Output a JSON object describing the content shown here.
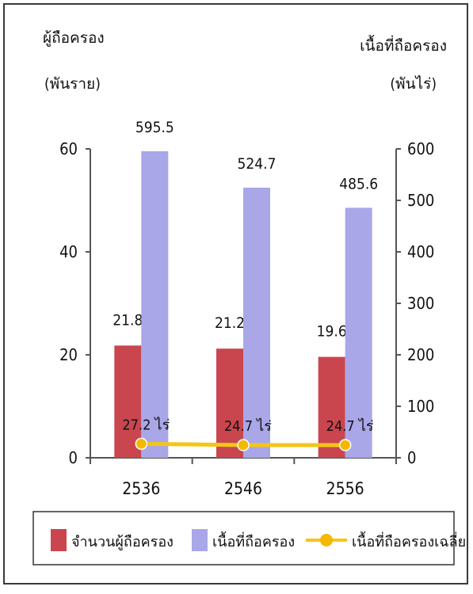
{
  "chart_data": {
    "type": "bar",
    "categories": [
      "2536",
      "2546",
      "2556"
    ],
    "y_left": {
      "label_line1": "ผู้ถือครอง",
      "label_line2": "(พันราย)",
      "range": [
        0,
        60
      ],
      "ticks": [
        "0",
        "20",
        "40",
        "60"
      ]
    },
    "y_right": {
      "label_line1": "เนื้อที่ถือครอง",
      "label_line2": "(พันไร่)",
      "range": [
        0,
        600
      ],
      "ticks": [
        "0",
        "100",
        "200",
        "300",
        "400",
        "500",
        "600"
      ]
    },
    "series": [
      {
        "name": "จำนวนผู้ถือครอง",
        "type": "bar",
        "axis": "left",
        "color": "#c9464f",
        "values": [
          21.8,
          21.2,
          19.6
        ],
        "labels": [
          "21.8",
          "21.2",
          "19.6"
        ]
      },
      {
        "name": "เนื้อที่ถือครอง",
        "type": "bar",
        "axis": "right",
        "color": "#a9a7e8",
        "values": [
          595.5,
          524.7,
          485.6
        ],
        "labels": [
          "595.5",
          "524.7",
          "485.6"
        ]
      },
      {
        "name": "เนื้อที่ถือครองเฉลี่ย",
        "type": "line",
        "axis": "right",
        "color": "#f5c518",
        "marker_color": "#f5b800",
        "values": [
          27.2,
          24.7,
          24.7
        ],
        "labels": [
          "27.2 ไร่",
          "24.7  ไร่",
          "24.7 ไร่"
        ]
      }
    ],
    "legend_position": "bottom",
    "grid": false
  }
}
